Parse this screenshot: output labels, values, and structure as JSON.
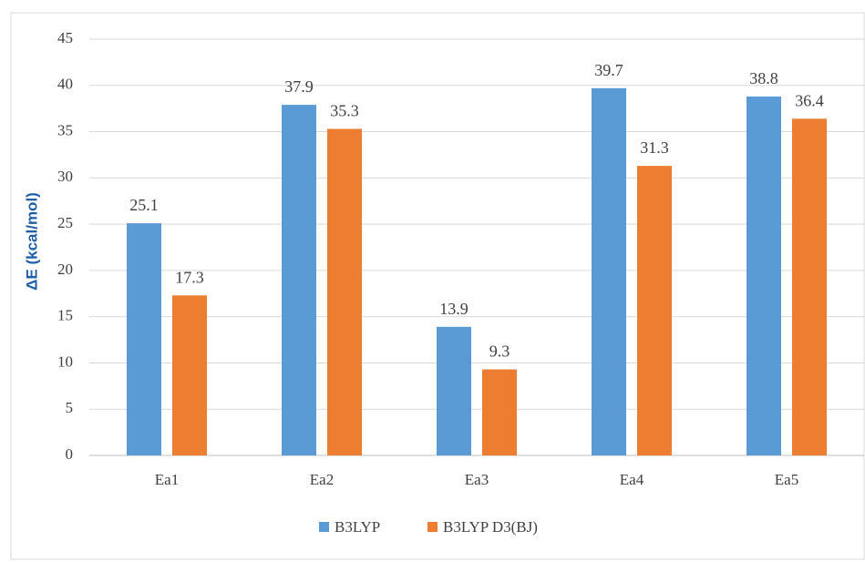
{
  "chart_data": {
    "type": "bar",
    "categories": [
      "Ea1",
      "Ea2",
      "Ea3",
      "Ea4",
      "Ea5"
    ],
    "series": [
      {
        "name": "B3LYP",
        "values": [
          25.1,
          37.9,
          13.9,
          39.7,
          38.8
        ],
        "color": "#5b9bd5"
      },
      {
        "name": "B3LYP D3(BJ)",
        "values": [
          17.3,
          35.3,
          9.3,
          31.3,
          36.4
        ],
        "color": "#ed7d31"
      }
    ],
    "data_labels": [
      [
        "25.1",
        "37.9",
        "13.9",
        "39.7",
        "38.8"
      ],
      [
        "17.3",
        "35.3",
        "9.3",
        "31.3",
        "36.4"
      ]
    ],
    "yticks": [
      "0",
      "5",
      "10",
      "15",
      "20",
      "25",
      "30",
      "35",
      "40",
      "45"
    ],
    "ylabel": "ΔE (kcal/mol)",
    "xlabel": "",
    "ylim": [
      0,
      45
    ],
    "grid": true,
    "legend_position": "bottom"
  },
  "colors": {
    "grid": "#d9d9d9",
    "axis": "#bfbfbf",
    "text": "#404040"
  }
}
